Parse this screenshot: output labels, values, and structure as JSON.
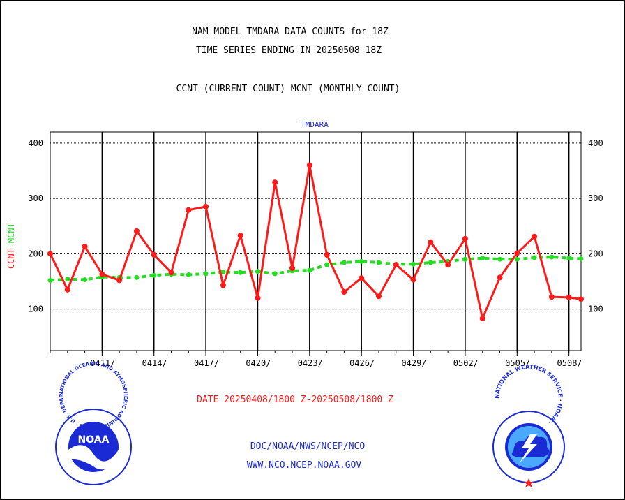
{
  "header": {
    "title_line1": "NAM MODEL TMDARA DATA COUNTS for 18Z",
    "title_line2": "TIME SERIES ENDING IN 20250508 18Z",
    "subtitle": "CCNT (CURRENT COUNT) MCNT (MONTHLY COUNT)"
  },
  "footer": {
    "date_range": "DATE 20250408/1800 Z-20250508/1800 Z",
    "link1": "DOC/NOAA/NWS/NCEP/NCO",
    "link2": "WWW.NCO.NCEP.NOAA.GOV",
    "noaa_logo_text": "NOAA",
    "noaa_ring_text": "NATIONAL OCEANIC AND ATMOSPHERIC ADMINISTRATION · U.S. DEPARTMENT OF COMMERCE ·",
    "nws_ring_text": "NATIONAL WEATHER SERVICE · NOAA ·"
  },
  "colors": {
    "ccnt": "#ff1a1a",
    "mcnt": "#22dd22",
    "label_blue": "#1a2bd6"
  },
  "chart_data": {
    "type": "line",
    "title": "TMDARA",
    "ylabel_ccnt": "CCNT",
    "ylabel_mcnt": "MCNT",
    "xlabel": "DATE 20250408/1800 Z-20250508/1800 Z",
    "ylim": [
      25,
      420
    ],
    "yticks": [
      100,
      200,
      300,
      400
    ],
    "grid": true,
    "x_tick_labels": [
      "0411/",
      "0414/",
      "0417/",
      "0420/",
      "0423/",
      "0426/",
      "0429/",
      "0502/",
      "0505/",
      "0508/"
    ],
    "x_tick_days": [
      3,
      6,
      9,
      12,
      15,
      18,
      21,
      24,
      27,
      30
    ],
    "xlim_days": [
      0,
      30.7
    ],
    "series": [
      {
        "name": "CCNT",
        "x_days": [
          0,
          1,
          2,
          3,
          4,
          5,
          6,
          7,
          8,
          9,
          10,
          11,
          12,
          13,
          14,
          15,
          16,
          17,
          18,
          19,
          20,
          21,
          22,
          23,
          24,
          25,
          26,
          27,
          28,
          29,
          30,
          30.7
        ],
        "values": [
          200,
          135,
          213,
          163,
          152,
          241,
          198,
          166,
          279,
          285,
          143,
          233,
          120,
          329,
          174,
          360,
          198,
          131,
          156,
          123,
          180,
          153,
          221,
          180,
          227,
          83,
          157,
          201,
          231,
          122,
          121,
          118
        ]
      },
      {
        "name": "MCNT",
        "x_days": [
          0,
          1,
          2,
          3,
          4,
          5,
          6,
          7,
          8,
          9,
          10,
          11,
          12,
          13,
          14,
          15,
          16,
          17,
          18,
          19,
          20,
          21,
          22,
          23,
          24,
          25,
          26,
          27,
          28,
          29,
          30,
          30.7
        ],
        "values": [
          152,
          154,
          153,
          158,
          157,
          157,
          161,
          163,
          162,
          164,
          167,
          166,
          168,
          164,
          169,
          170,
          180,
          184,
          186,
          184,
          181,
          181,
          184,
          186,
          190,
          192,
          190,
          190,
          193,
          194,
          192,
          191
        ]
      }
    ]
  }
}
